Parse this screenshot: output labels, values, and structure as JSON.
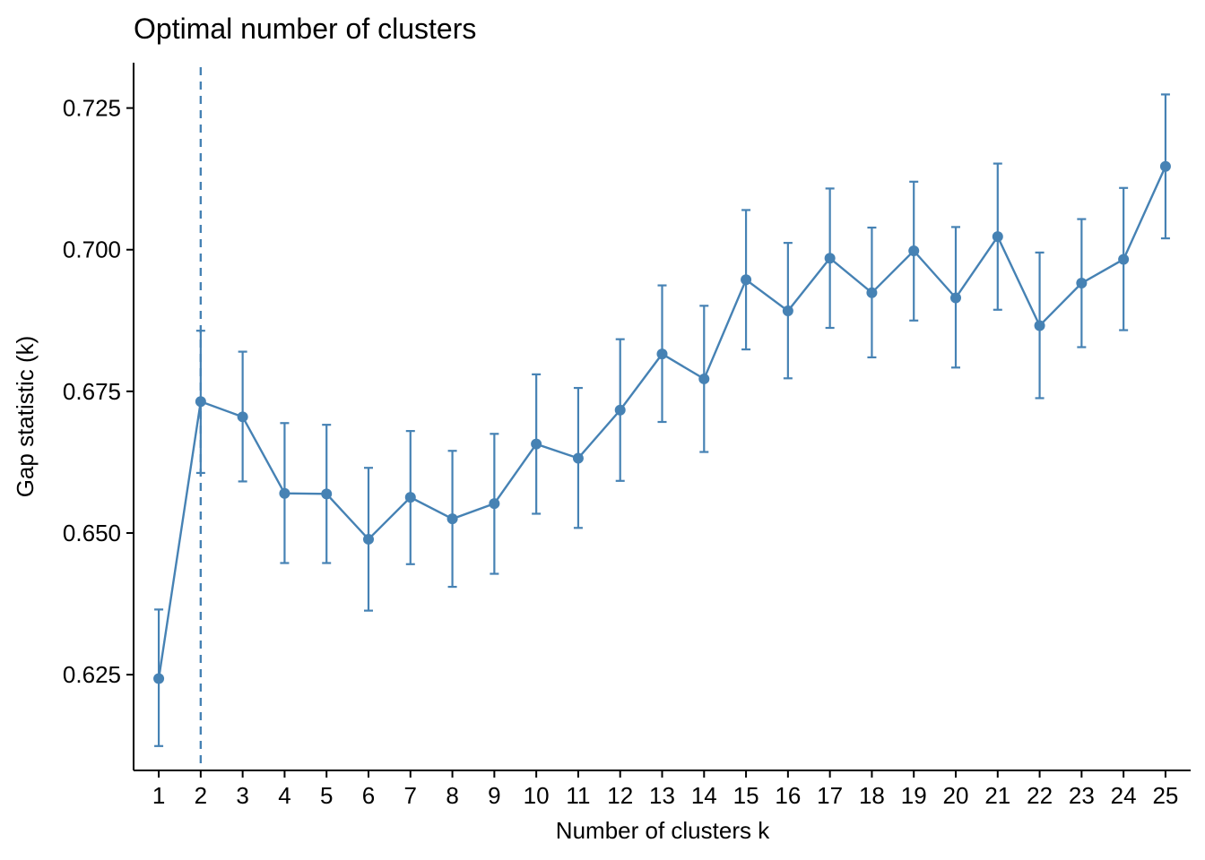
{
  "chart_data": {
    "type": "line",
    "title": "Optimal number of clusters",
    "xlabel": "Number of clusters k",
    "ylabel": "Gap statistic (k)",
    "x": [
      1,
      2,
      3,
      4,
      5,
      6,
      7,
      8,
      9,
      10,
      11,
      12,
      13,
      14,
      15,
      16,
      17,
      18,
      19,
      20,
      21,
      22,
      23,
      24,
      25
    ],
    "x_tick_labels": [
      "1",
      "2",
      "3",
      "4",
      "5",
      "6",
      "7",
      "8",
      "9",
      "10",
      "11",
      "12",
      "13",
      "14",
      "15",
      "16",
      "17",
      "18",
      "19",
      "20",
      "21",
      "22",
      "23",
      "24",
      "25"
    ],
    "series": [
      {
        "values": [
          0.6243,
          0.6732,
          0.6705,
          0.657,
          0.6569,
          0.6489,
          0.6563,
          0.6525,
          0.6552,
          0.6657,
          0.6632,
          0.6717,
          0.6816,
          0.6772,
          0.6947,
          0.6892,
          0.6985,
          0.6924,
          0.6998,
          0.6915,
          0.7023,
          0.6866,
          0.6941,
          0.6983,
          0.7147
        ],
        "err_low": [
          0.6124,
          0.6606,
          0.6591,
          0.6447,
          0.6447,
          0.6363,
          0.6445,
          0.6405,
          0.6428,
          0.6534,
          0.6509,
          0.6592,
          0.6696,
          0.6643,
          0.6824,
          0.6773,
          0.6862,
          0.681,
          0.6875,
          0.6792,
          0.6894,
          0.6738,
          0.6828,
          0.6858,
          0.702
        ],
        "err_high": [
          0.6365,
          0.6857,
          0.682,
          0.6694,
          0.6691,
          0.6615,
          0.668,
          0.6645,
          0.6675,
          0.678,
          0.6756,
          0.6842,
          0.6937,
          0.6901,
          0.707,
          0.7012,
          0.7108,
          0.7039,
          0.712,
          0.704,
          0.7152,
          0.6995,
          0.7054,
          0.7109,
          0.7274
        ]
      }
    ],
    "optimal_k": 2,
    "ylim": [
      0.6081,
      0.733
    ],
    "xlim": [
      0.4,
      25.6
    ],
    "y_ticks": [
      0.625,
      0.65,
      0.675,
      0.7,
      0.725
    ],
    "y_tick_labels": [
      "0.625",
      "0.650",
      "0.675",
      "0.700",
      "0.725"
    ],
    "grid": false,
    "colors": {
      "series": "#4682B4",
      "axis": "#000000",
      "background": "#FFFFFF"
    }
  }
}
